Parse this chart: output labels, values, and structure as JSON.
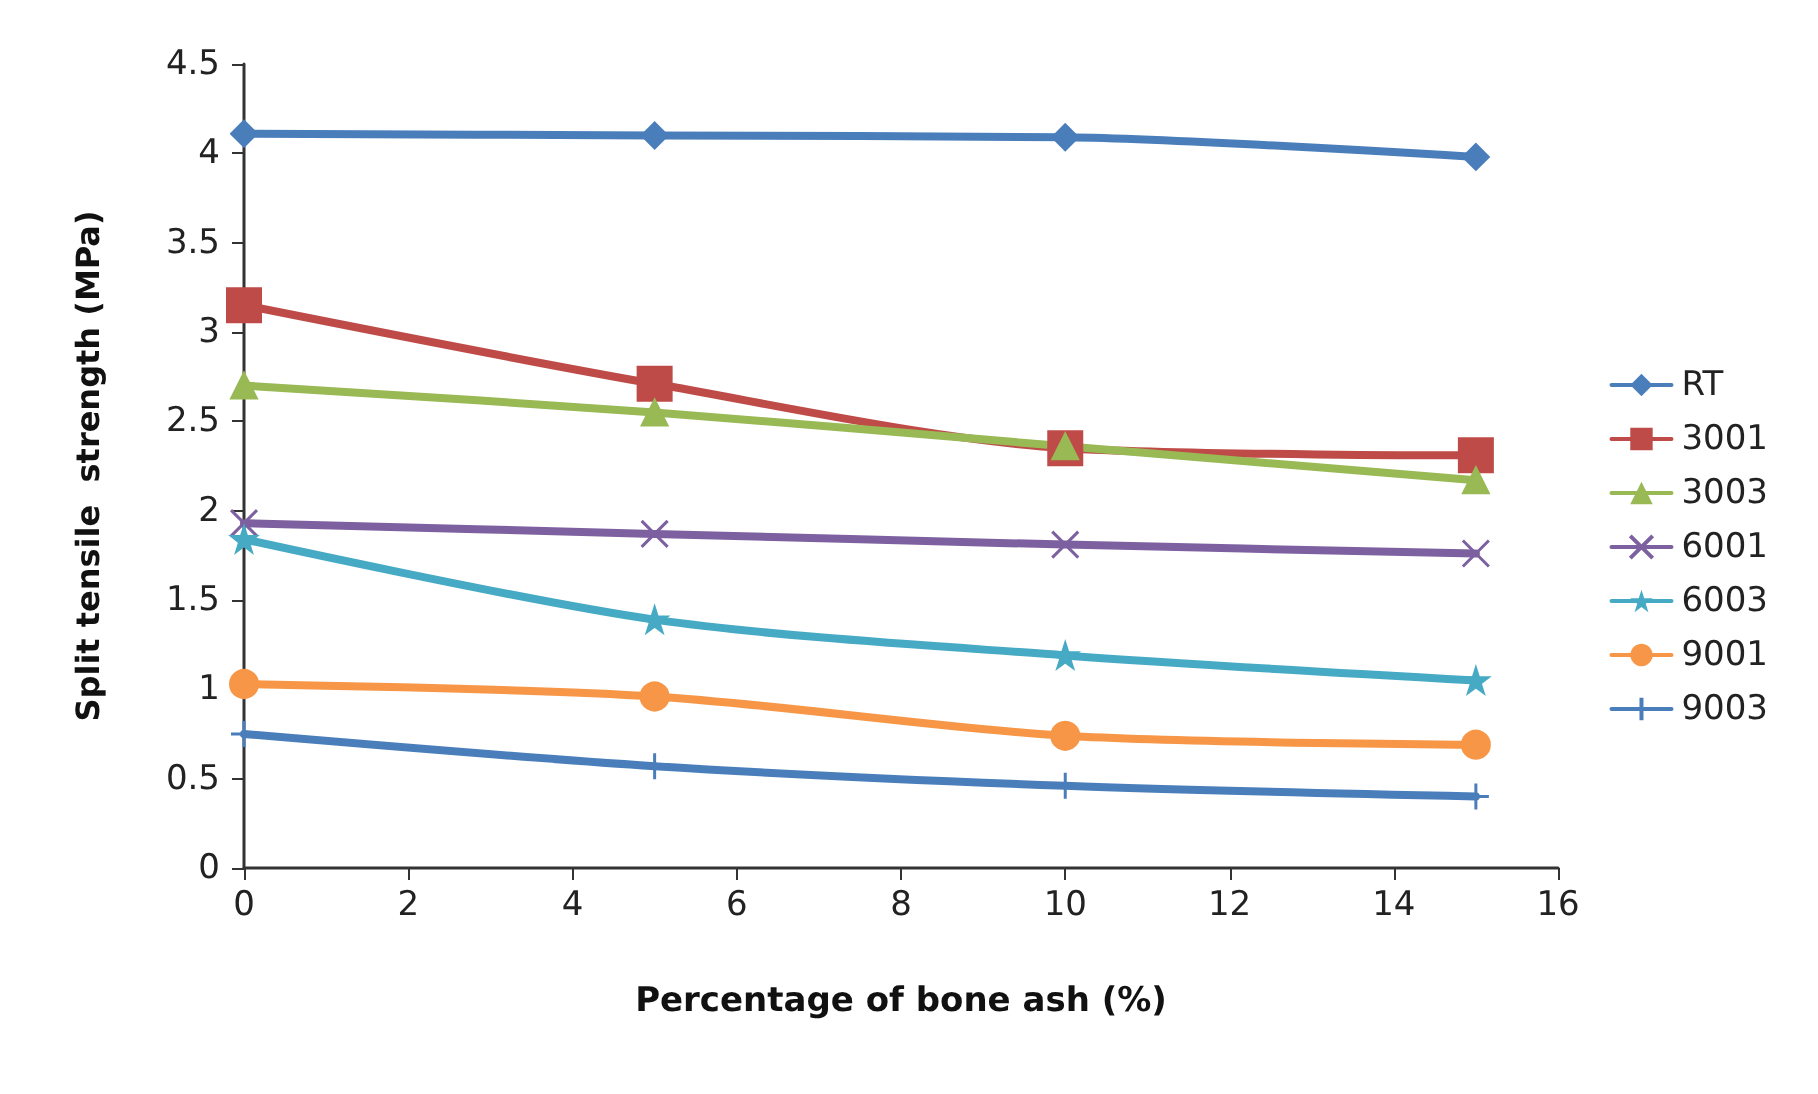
{
  "chart_data": {
    "type": "line",
    "xlabel": "Percentage of bone ash (%)",
    "ylabel": "Split tensile  strength (MPa)",
    "x": [
      0,
      5,
      10,
      15
    ],
    "series": [
      {
        "name": "RT",
        "color": "#4a7ebb",
        "marker": "diamond",
        "values": [
          4.11,
          4.1,
          4.09,
          3.98
        ]
      },
      {
        "name": "3001",
        "color": "#be4b48",
        "marker": "square",
        "values": [
          3.15,
          2.71,
          2.35,
          2.31
        ]
      },
      {
        "name": "3003",
        "color": "#98b954",
        "marker": "triangle",
        "values": [
          2.7,
          2.55,
          2.36,
          2.17
        ]
      },
      {
        "name": "6001",
        "color": "#7d60a0",
        "marker": "cross",
        "values": [
          1.93,
          1.87,
          1.81,
          1.76
        ]
      },
      {
        "name": "6003",
        "color": "#46aac5",
        "marker": "star",
        "values": [
          1.84,
          1.39,
          1.19,
          1.05
        ]
      },
      {
        "name": "9001",
        "color": "#f79646",
        "marker": "circle",
        "values": [
          1.03,
          0.96,
          0.74,
          0.69
        ]
      },
      {
        "name": "9003",
        "color": "#4a7ebb",
        "marker": "plus",
        "values": [
          0.75,
          0.57,
          0.46,
          0.4
        ]
      }
    ],
    "xlim": [
      0,
      16
    ],
    "xticks": [
      0,
      2,
      4,
      6,
      8,
      10,
      12,
      14,
      16
    ],
    "ylim": [
      0,
      4.5
    ],
    "yticks": [
      0,
      0.5,
      1,
      1.5,
      2,
      2.5,
      3,
      3.5,
      4,
      4.5
    ],
    "grid": false,
    "legend": "right"
  }
}
